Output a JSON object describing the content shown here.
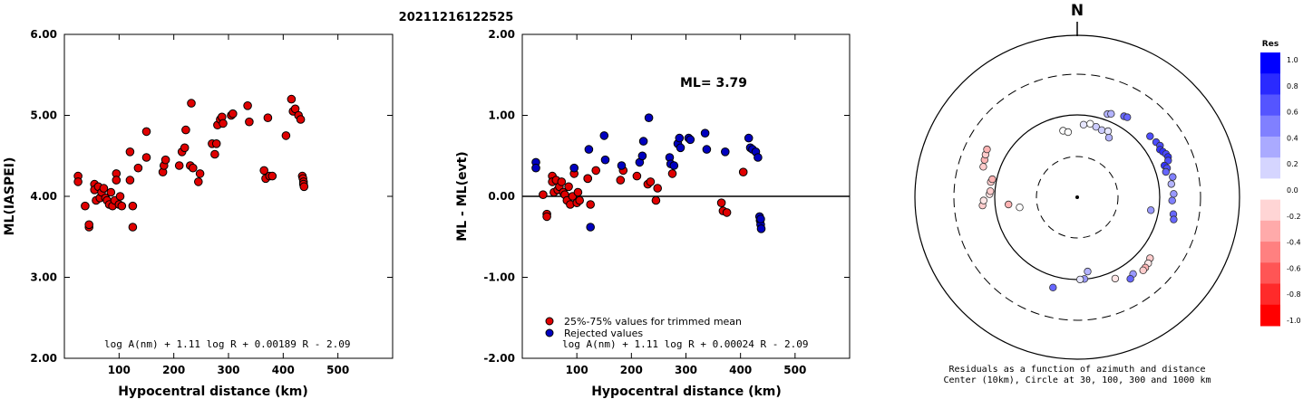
{
  "page_title": "20211216122525",
  "chart_data": [
    {
      "type": "scatter",
      "title": "",
      "xlabel": "Hypocentral distance (km)",
      "ylabel": "ML(IASPEI)",
      "xlim": [
        0,
        600
      ],
      "ylim": [
        2.0,
        6.0
      ],
      "xticks": [
        "100",
        "200",
        "300",
        "400",
        "500"
      ],
      "yticks": [
        "2.00",
        "3.00",
        "4.00",
        "5.00",
        "6.00"
      ],
      "formula": "log A(nm) + 1.11 log R + 0.00189 R - 2.09",
      "marker_color": "#e00000",
      "points": [
        [
          25,
          4.25
        ],
        [
          25,
          4.18
        ],
        [
          38,
          3.88
        ],
        [
          45,
          3.62
        ],
        [
          45,
          3.65
        ],
        [
          55,
          4.15
        ],
        [
          55,
          4.08
        ],
        [
          58,
          3.95
        ],
        [
          62,
          4.12
        ],
        [
          65,
          3.98
        ],
        [
          68,
          4.05
        ],
        [
          72,
          4.1
        ],
        [
          75,
          3.98
        ],
        [
          78,
          3.95
        ],
        [
          82,
          3.9
        ],
        [
          85,
          4.05
        ],
        [
          88,
          3.88
        ],
        [
          92,
          3.95
        ],
        [
          95,
          4.28
        ],
        [
          95,
          4.2
        ],
        [
          100,
          3.9
        ],
        [
          102,
          4.0
        ],
        [
          105,
          3.88
        ],
        [
          120,
          4.2
        ],
        [
          120,
          4.55
        ],
        [
          125,
          3.62
        ],
        [
          125,
          3.88
        ],
        [
          135,
          4.35
        ],
        [
          150,
          4.48
        ],
        [
          150,
          4.8
        ],
        [
          180,
          4.3
        ],
        [
          182,
          4.38
        ],
        [
          185,
          4.45
        ],
        [
          210,
          4.38
        ],
        [
          215,
          4.55
        ],
        [
          220,
          4.6
        ],
        [
          222,
          4.82
        ],
        [
          230,
          4.38
        ],
        [
          232,
          5.15
        ],
        [
          235,
          4.35
        ],
        [
          245,
          4.18
        ],
        [
          248,
          4.28
        ],
        [
          270,
          4.65
        ],
        [
          275,
          4.52
        ],
        [
          278,
          4.65
        ],
        [
          280,
          4.88
        ],
        [
          285,
          4.95
        ],
        [
          288,
          4.98
        ],
        [
          290,
          4.9
        ],
        [
          305,
          5.0
        ],
        [
          308,
          5.02
        ],
        [
          335,
          5.12
        ],
        [
          338,
          4.92
        ],
        [
          365,
          4.32
        ],
        [
          368,
          4.22
        ],
        [
          372,
          4.97
        ],
        [
          375,
          4.25
        ],
        [
          380,
          4.25
        ],
        [
          405,
          4.75
        ],
        [
          415,
          5.2
        ],
        [
          418,
          5.05
        ],
        [
          422,
          5.08
        ],
        [
          428,
          5.0
        ],
        [
          432,
          4.95
        ],
        [
          435,
          4.25
        ],
        [
          436,
          4.22
        ],
        [
          437,
          4.18
        ],
        [
          437,
          4.15
        ],
        [
          438,
          4.12
        ]
      ]
    },
    {
      "type": "scatter",
      "title": "",
      "xlabel": "Hypocentral distance (km)",
      "ylabel": "ML - ML(evt)",
      "xlim": [
        0,
        600
      ],
      "ylim": [
        -2.0,
        2.0
      ],
      "xticks": [
        "100",
        "200",
        "300",
        "400",
        "500"
      ],
      "yticks": [
        "-2.00",
        "-1.00",
        "0.00",
        "1.00",
        "2.00"
      ],
      "annotation": "ML= 3.79",
      "legend": [
        "25%-75% values for trimmed mean",
        "Rejected values"
      ],
      "legend_colors": [
        "#e00000",
        "#0000c0"
      ],
      "formula": "log A(nm) + 1.11 log R + 0.00024 R - 2.09",
      "series": [
        {
          "name": "25%-75% values for trimmed mean",
          "color": "#e00000",
          "points": [
            [
              38,
              0.02
            ],
            [
              45,
              -0.22
            ],
            [
              45,
              -0.25
            ],
            [
              55,
              0.25
            ],
            [
              55,
              0.18
            ],
            [
              58,
              0.05
            ],
            [
              62,
              0.2
            ],
            [
              65,
              0.08
            ],
            [
              68,
              0.12
            ],
            [
              72,
              0.18
            ],
            [
              75,
              0.05
            ],
            [
              78,
              0.02
            ],
            [
              82,
              -0.05
            ],
            [
              85,
              0.12
            ],
            [
              88,
              -0.1
            ],
            [
              92,
              0.0
            ],
            [
              95,
              0.28
            ],
            [
              100,
              -0.08
            ],
            [
              102,
              0.05
            ],
            [
              105,
              -0.05
            ],
            [
              120,
              0.22
            ],
            [
              120,
              0.22
            ],
            [
              125,
              -0.1
            ],
            [
              135,
              0.32
            ],
            [
              180,
              0.2
            ],
            [
              185,
              0.32
            ],
            [
              210,
              0.25
            ],
            [
              230,
              0.15
            ],
            [
              235,
              0.18
            ],
            [
              245,
              -0.05
            ],
            [
              248,
              0.1
            ],
            [
              275,
              0.28
            ],
            [
              365,
              -0.08
            ],
            [
              368,
              -0.18
            ],
            [
              375,
              -0.2
            ],
            [
              405,
              0.3
            ]
          ]
        },
        {
          "name": "Rejected values",
          "color": "#0000c0",
          "points": [
            [
              25,
              0.42
            ],
            [
              25,
              0.35
            ],
            [
              95,
              0.35
            ],
            [
              122,
              0.58
            ],
            [
              125,
              -0.38
            ],
            [
              150,
              0.75
            ],
            [
              152,
              0.45
            ],
            [
              182,
              0.38
            ],
            [
              215,
              0.42
            ],
            [
              220,
              0.5
            ],
            [
              222,
              0.68
            ],
            [
              232,
              0.97
            ],
            [
              270,
              0.48
            ],
            [
              272,
              0.4
            ],
            [
              278,
              0.38
            ],
            [
              285,
              0.65
            ],
            [
              288,
              0.72
            ],
            [
              290,
              0.6
            ],
            [
              305,
              0.72
            ],
            [
              308,
              0.7
            ],
            [
              335,
              0.78
            ],
            [
              338,
              0.58
            ],
            [
              372,
              0.55
            ],
            [
              415,
              0.72
            ],
            [
              418,
              0.6
            ],
            [
              422,
              0.58
            ],
            [
              428,
              0.55
            ],
            [
              432,
              0.48
            ],
            [
              435,
              -0.25
            ],
            [
              436,
              -0.3
            ],
            [
              437,
              -0.35
            ],
            [
              438,
              -0.4
            ],
            [
              437,
              -0.28
            ]
          ]
        }
      ]
    },
    {
      "type": "polar-scatter",
      "compass_label": "N",
      "caption_line1": "Residuals as a function of azimuth and distance",
      "caption_line2": "Center (10km), Circle at 30, 100, 300 and 1000 km",
      "colorbar_title": "Res",
      "colorbar_ticks": [
        "1.0",
        "0.8",
        "0.6",
        "0.4",
        "0.2",
        "0.0",
        "-0.2",
        "-0.4",
        "-0.6",
        "-0.8",
        "-1.0"
      ],
      "colorbar_colors": [
        "#0000ff",
        "#2a2aff",
        "#5555ff",
        "#8080ff",
        "#aaaaff",
        "#d5d5ff",
        "#ffffff",
        "#ffd5d5",
        "#ffaaaa",
        "#ff8080",
        "#ff5555",
        "#ff2a2a",
        "#ff0000"
      ],
      "rings_km": [
        30,
        100,
        300,
        1000
      ],
      "points": [
        [
          -72,
          155,
          -0.2
        ],
        [
          -68,
          160,
          -0.3
        ],
        [
          -65,
          165,
          -0.2
        ],
        [
          -62,
          170,
          -0.3
        ],
        [
          -80,
          115,
          -0.2
        ],
        [
          -78,
          112,
          -0.3
        ],
        [
          -95,
          140,
          -0.2
        ],
        [
          -92,
          135,
          -0.1
        ],
        [
          -88,
          115,
          -0.1
        ],
        [
          -86,
          113,
          -0.2
        ],
        [
          -96,
          68,
          -0.3
        ],
        [
          -100,
          50,
          0.0
        ],
        [
          20,
          118,
          0.3
        ],
        [
          22,
          123,
          0.3
        ],
        [
          30,
          135,
          0.6
        ],
        [
          32,
          138,
          0.6
        ],
        [
          50,
          140,
          0.7
        ],
        [
          55,
          145,
          0.7
        ],
        [
          58,
          150,
          0.7
        ],
        [
          60,
          142,
          0.8
        ],
        [
          62,
          148,
          0.8
        ],
        [
          64,
          155,
          0.7
        ],
        [
          66,
          158,
          0.8
        ],
        [
          68,
          152,
          0.7
        ],
        [
          70,
          132,
          0.8
        ],
        [
          72,
          138,
          0.7
        ],
        [
          74,
          130,
          0.6
        ],
        [
          78,
          150,
          0.5
        ],
        [
          82,
          140,
          0.3
        ],
        [
          88,
          146,
          0.4
        ],
        [
          92,
          140,
          0.5
        ],
        [
          100,
          150,
          0.6
        ],
        [
          103,
          156,
          0.6
        ],
        [
          10,
          80,
          0.0
        ],
        [
          15,
          76,
          0.2
        ],
        [
          20,
          73,
          0.2
        ],
        [
          25,
          76,
          0.1
        ],
        [
          28,
          65,
          0.3
        ],
        [
          5,
          76,
          0.1
        ],
        [
          -12,
          66,
          0.0
        ],
        [
          -8,
          62,
          0.0
        ],
        [
          100,
          80,
          0.4
        ],
        [
          130,
          140,
          -0.2
        ],
        [
          133,
          148,
          -0.1
        ],
        [
          136,
          152,
          -0.3
        ],
        [
          138,
          154,
          -0.2
        ],
        [
          155,
          122,
          -0.1
        ],
        [
          172,
          81,
          0.3
        ],
        [
          175,
          99,
          0.4
        ],
        [
          178,
          100,
          0.1
        ],
        [
          144,
          140,
          0.4
        ],
        [
          147,
          150,
          0.6
        ],
        [
          -165,
          135,
          0.6
        ]
      ]
    }
  ]
}
